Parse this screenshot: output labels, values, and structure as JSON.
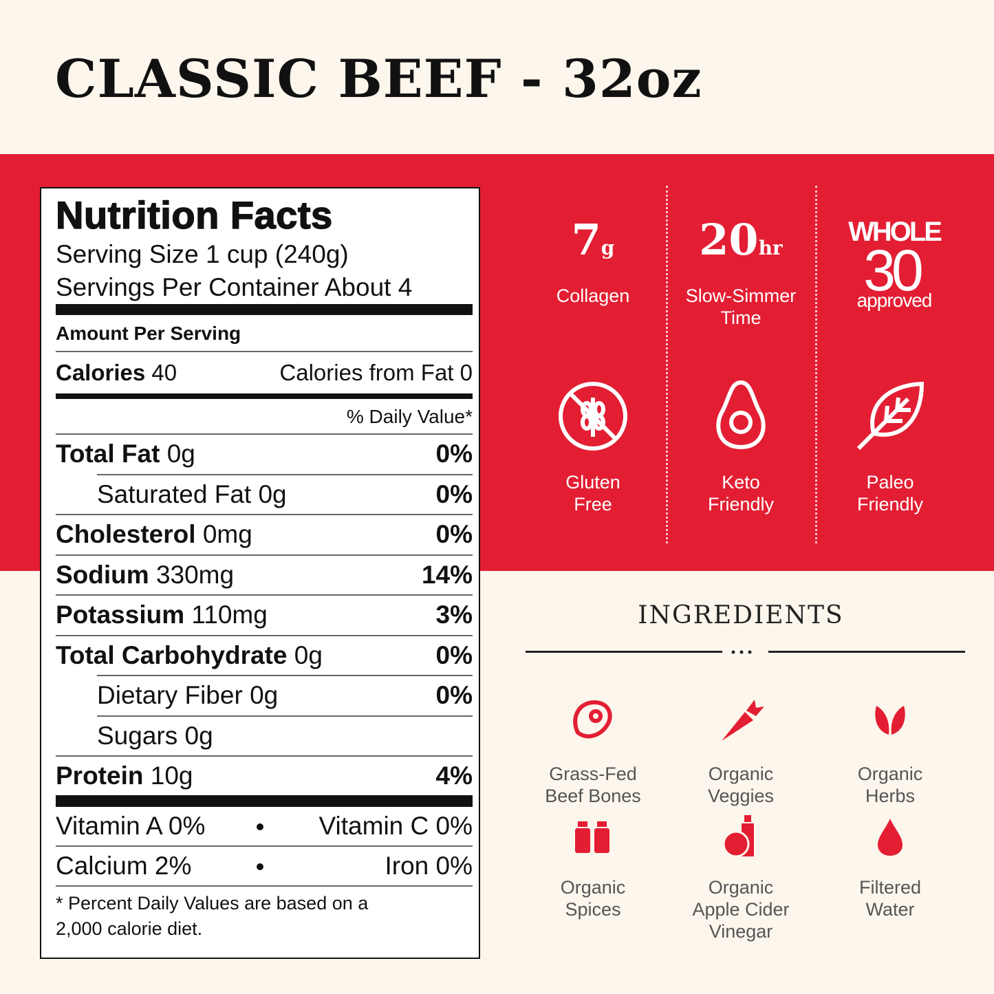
{
  "header": {
    "title": "CLASSIC BEEF - 32oz"
  },
  "nutrition": {
    "title": "Nutrition Facts",
    "serving_size": "Serving Size 1 cup (240g)",
    "servings_per_container": "Servings Per Container About 4",
    "amount_per_serving": "Amount Per Serving",
    "calories": {
      "label": "Calories",
      "value": "40"
    },
    "calories_from_fat": "Calories from Fat 0",
    "daily_value_header": "% Daily Value*",
    "nutrients": [
      {
        "name": "Total Fat",
        "amount": "0g",
        "daily_value": "0%",
        "sub": false
      },
      {
        "name": "Saturated Fat",
        "amount": "0g",
        "daily_value": "0%",
        "sub": true
      },
      {
        "name": "Cholesterol",
        "amount": "0mg",
        "daily_value": "0%",
        "sub": false
      },
      {
        "name": "Sodium",
        "amount": "330mg",
        "daily_value": "14%",
        "sub": false
      },
      {
        "name": "Potassium",
        "amount": "110mg",
        "daily_value": "3%",
        "sub": false
      },
      {
        "name": "Total Carbohydrate",
        "amount": "0g",
        "daily_value": "0%",
        "sub": false
      },
      {
        "name": "Dietary Fiber",
        "amount": "0g",
        "daily_value": "0%",
        "sub": true
      },
      {
        "name": "Sugars",
        "amount": "0g",
        "sub": true
      },
      {
        "name": "Protein",
        "amount": "10g",
        "daily_value": "4%",
        "sub": false
      }
    ],
    "vitamins": [
      [
        "Vitamin A 0%",
        "Vitamin C 0%"
      ],
      [
        "Calcium 2%",
        "Iron 0%"
      ]
    ],
    "footnote": [
      "* Percent Daily Values are based on a",
      "2,000 calorie diet."
    ]
  },
  "highlights": [
    {
      "value": "7",
      "unit": "g",
      "label": [
        "Collagen"
      ]
    },
    {
      "value": "20",
      "unit": "hr",
      "label": [
        "Slow-Simmer",
        "Time"
      ]
    }
  ],
  "certification": {
    "line1": "WHOLE",
    "line2": "30",
    "line3": "approved"
  },
  "diets": [
    [
      "Gluten",
      "Free"
    ],
    [
      "Keto",
      "Friendly"
    ],
    [
      "Paleo",
      "Friendly"
    ]
  ],
  "ingredients": {
    "title": "INGREDIENTS",
    "items": [
      [
        "Grass-Fed",
        "Beef Bones"
      ],
      [
        "Organic",
        "Veggies"
      ],
      [
        "Organic",
        "Herbs"
      ],
      [
        "Organic",
        "Spices"
      ],
      [
        "Organic",
        "Apple Cider",
        "Vinegar"
      ],
      [
        "Filtered",
        "Water"
      ]
    ]
  }
}
